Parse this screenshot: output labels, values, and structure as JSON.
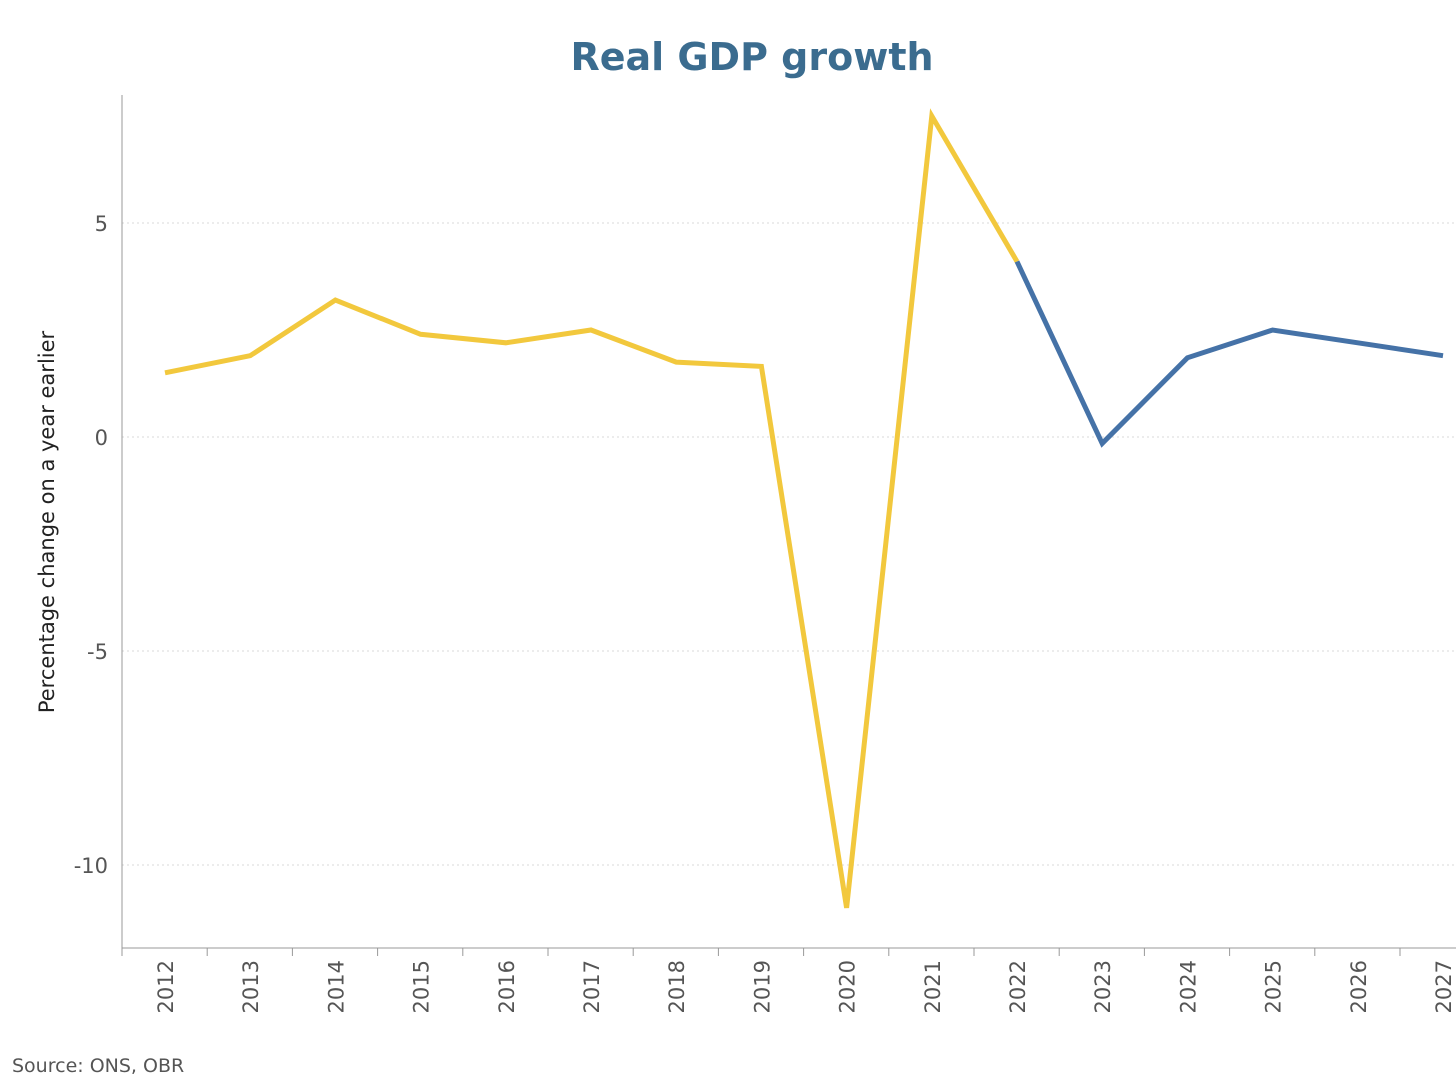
{
  "chart_data": {
    "type": "line",
    "title": "Real GDP growth",
    "ylabel": "Percentage change on a year earlier",
    "xlabel": "",
    "source": "Source: ONS, OBR",
    "x": [
      "2012",
      "2013",
      "2014",
      "2015",
      "2016",
      "2017",
      "2018",
      "2019",
      "2020",
      "2021",
      "2022",
      "2023",
      "2024",
      "2025",
      "2026",
      "2027"
    ],
    "ylim": [
      -12,
      8
    ],
    "yticks": [
      5,
      0,
      -5,
      -10
    ],
    "ytick_labels": [
      "5",
      "0",
      "-5",
      "-10"
    ],
    "grid": "horizontal dotted",
    "series": [
      {
        "color": "#f2c83d",
        "values": [
          1.5,
          1.9,
          3.2,
          2.4,
          2.2,
          2.5,
          1.75,
          1.65,
          -11.0,
          7.5,
          4.1,
          null,
          null,
          null,
          null,
          null
        ]
      },
      {
        "color": "#4572a7",
        "values": [
          null,
          null,
          null,
          null,
          null,
          null,
          null,
          null,
          null,
          null,
          4.1,
          -0.15,
          1.85,
          2.5,
          2.2,
          1.9
        ]
      }
    ]
  }
}
